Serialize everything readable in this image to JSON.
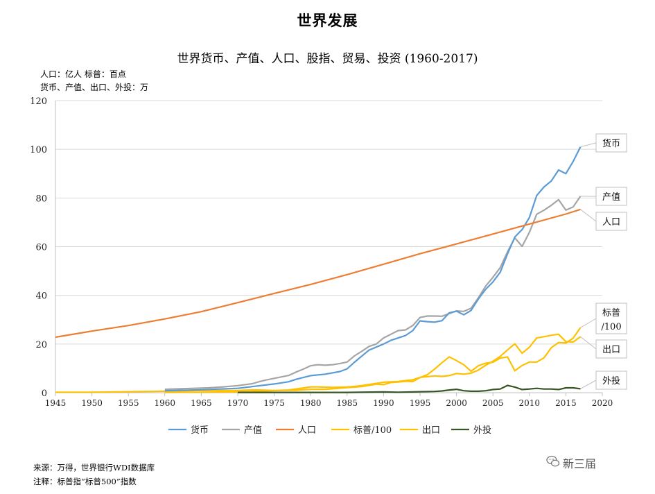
{
  "header": {
    "title": "世界发展",
    "unit_line_1": "人口：亿人   标普：百点",
    "unit_line_2": "货币、产值、出口、外投：万"
  },
  "footer": {
    "source": "来源：万得，世界银行WDI数据库",
    "note": "注释：标普指“标普500”指数",
    "brand": "新三届"
  },
  "chart_data": {
    "type": "line",
    "title": "世界货币、产值、人口、股指、贸易、投资 (1960-2017)",
    "xlim": [
      1945,
      2020
    ],
    "ylim": [
      0,
      120
    ],
    "x_ticks": [
      1945,
      1950,
      1955,
      1960,
      1965,
      1970,
      1975,
      1980,
      1985,
      1990,
      1995,
      2000,
      2005,
      2010,
      2015,
      2020
    ],
    "y_ticks": [
      0,
      20,
      40,
      60,
      80,
      100,
      120
    ],
    "legend_position": "bottom",
    "series": [
      {
        "name": "货币",
        "color": "#5b9bd5",
        "callout": "货币",
        "points": [
          [
            1960,
            0.8
          ],
          [
            1965,
            1.2
          ],
          [
            1970,
            1.8
          ],
          [
            1972,
            2.5
          ],
          [
            1975,
            3.6
          ],
          [
            1977,
            4.5
          ],
          [
            1978,
            5.5
          ],
          [
            1980,
            7.0
          ],
          [
            1982,
            7.6
          ],
          [
            1984,
            8.7
          ],
          [
            1985,
            9.8
          ],
          [
            1986,
            12.5
          ],
          [
            1987,
            15.0
          ],
          [
            1988,
            17.5
          ],
          [
            1990,
            20.0
          ],
          [
            1991,
            21.5
          ],
          [
            1993,
            23.5
          ],
          [
            1994,
            25.5
          ],
          [
            1995,
            29.5
          ],
          [
            1996,
            29.2
          ],
          [
            1997,
            29.0
          ],
          [
            1998,
            29.6
          ],
          [
            1999,
            32.8
          ],
          [
            2000,
            33.5
          ],
          [
            2001,
            32.0
          ],
          [
            2002,
            33.8
          ],
          [
            2003,
            38.5
          ],
          [
            2004,
            42.5
          ],
          [
            2005,
            45.5
          ],
          [
            2006,
            49.5
          ],
          [
            2007,
            57.0
          ],
          [
            2008,
            64.0
          ],
          [
            2009,
            67.0
          ],
          [
            2010,
            72.0
          ],
          [
            2011,
            81.0
          ],
          [
            2012,
            84.5
          ],
          [
            2013,
            87.0
          ],
          [
            2014,
            91.5
          ],
          [
            2015,
            90.0
          ],
          [
            2016,
            95.0
          ],
          [
            2017,
            101.0
          ]
        ]
      },
      {
        "name": "产值",
        "color": "#a5a5a5",
        "callout": "产值",
        "points": [
          [
            1960,
            1.4
          ],
          [
            1962,
            1.6
          ],
          [
            1964,
            1.8
          ],
          [
            1966,
            2.0
          ],
          [
            1968,
            2.4
          ],
          [
            1970,
            2.9
          ],
          [
            1972,
            3.7
          ],
          [
            1973,
            4.6
          ],
          [
            1974,
            5.3
          ],
          [
            1975,
            5.9
          ],
          [
            1977,
            7.1
          ],
          [
            1978,
            8.5
          ],
          [
            1979,
            9.7
          ],
          [
            1980,
            11.1
          ],
          [
            1981,
            11.5
          ],
          [
            1982,
            11.3
          ],
          [
            1983,
            11.5
          ],
          [
            1984,
            12.0
          ],
          [
            1985,
            12.6
          ],
          [
            1986,
            15.1
          ],
          [
            1987,
            17.0
          ],
          [
            1988,
            19.0
          ],
          [
            1989,
            20.0
          ],
          [
            1990,
            22.5
          ],
          [
            1991,
            24.0
          ],
          [
            1992,
            25.5
          ],
          [
            1993,
            25.8
          ],
          [
            1994,
            27.6
          ],
          [
            1995,
            30.9
          ],
          [
            1996,
            31.5
          ],
          [
            1997,
            31.5
          ],
          [
            1998,
            31.4
          ],
          [
            1999,
            32.5
          ],
          [
            2000,
            33.6
          ],
          [
            2001,
            33.4
          ],
          [
            2002,
            34.7
          ],
          [
            2003,
            39.0
          ],
          [
            2004,
            43.8
          ],
          [
            2005,
            47.4
          ],
          [
            2006,
            51.4
          ],
          [
            2007,
            57.9
          ],
          [
            2008,
            63.6
          ],
          [
            2009,
            60.1
          ],
          [
            2010,
            65.9
          ],
          [
            2011,
            73.3
          ],
          [
            2012,
            75.0
          ],
          [
            2013,
            77.0
          ],
          [
            2014,
            79.3
          ],
          [
            2015,
            75.0
          ],
          [
            2016,
            76.3
          ],
          [
            2017,
            80.7
          ]
        ]
      },
      {
        "name": "人口",
        "color": "#ed7d31",
        "callout": "人口",
        "points": [
          [
            1945,
            22.8
          ],
          [
            1950,
            25.3
          ],
          [
            1955,
            27.6
          ],
          [
            1960,
            30.3
          ],
          [
            1965,
            33.3
          ],
          [
            1970,
            37.0
          ],
          [
            1975,
            40.8
          ],
          [
            1980,
            44.5
          ],
          [
            1985,
            48.5
          ],
          [
            1990,
            52.8
          ],
          [
            1995,
            57.1
          ],
          [
            2000,
            61.1
          ],
          [
            2005,
            65.2
          ],
          [
            2010,
            69.3
          ],
          [
            2015,
            73.4
          ],
          [
            2017,
            75.3
          ]
        ]
      },
      {
        "name": "标普/100",
        "color": "#ffc000",
        "callout": "标普\n/100",
        "points": [
          [
            1945,
            0.2
          ],
          [
            1950,
            0.2
          ],
          [
            1955,
            0.4
          ],
          [
            1960,
            0.6
          ],
          [
            1965,
            0.9
          ],
          [
            1970,
            0.9
          ],
          [
            1972,
            1.2
          ],
          [
            1975,
            0.9
          ],
          [
            1978,
            1.0
          ],
          [
            1980,
            1.4
          ],
          [
            1982,
            1.4
          ],
          [
            1985,
            2.1
          ],
          [
            1987,
            2.5
          ],
          [
            1989,
            3.5
          ],
          [
            1990,
            3.3
          ],
          [
            1991,
            4.2
          ],
          [
            1992,
            4.4
          ],
          [
            1993,
            4.7
          ],
          [
            1994,
            4.6
          ],
          [
            1995,
            6.2
          ],
          [
            1996,
            7.4
          ],
          [
            1997,
            9.7
          ],
          [
            1998,
            12.3
          ],
          [
            1999,
            14.7
          ],
          [
            2000,
            13.2
          ],
          [
            2001,
            11.5
          ],
          [
            2002,
            8.8
          ],
          [
            2003,
            11.1
          ],
          [
            2004,
            12.1
          ],
          [
            2005,
            12.5
          ],
          [
            2006,
            14.2
          ],
          [
            2007,
            14.7
          ],
          [
            2008,
            9.0
          ],
          [
            2009,
            11.2
          ],
          [
            2010,
            12.6
          ],
          [
            2011,
            12.6
          ],
          [
            2012,
            14.3
          ],
          [
            2013,
            18.5
          ],
          [
            2014,
            20.6
          ],
          [
            2015,
            20.4
          ],
          [
            2016,
            22.4
          ],
          [
            2017,
            26.7
          ]
        ]
      },
      {
        "name": "出口",
        "color": "#ffc000",
        "callout": "出口",
        "points": [
          [
            1960,
            0.13
          ],
          [
            1965,
            0.19
          ],
          [
            1970,
            0.31
          ],
          [
            1973,
            0.58
          ],
          [
            1975,
            0.88
          ],
          [
            1977,
            1.1
          ],
          [
            1980,
            2.4
          ],
          [
            1981,
            2.4
          ],
          [
            1983,
            2.2
          ],
          [
            1985,
            2.3
          ],
          [
            1987,
            2.9
          ],
          [
            1990,
            4.3
          ],
          [
            1992,
            4.6
          ],
          [
            1994,
            5.3
          ],
          [
            1995,
            6.3
          ],
          [
            1997,
            6.9
          ],
          [
            1998,
            6.7
          ],
          [
            1999,
            7.0
          ],
          [
            2000,
            7.9
          ],
          [
            2001,
            7.6
          ],
          [
            2002,
            8.0
          ],
          [
            2003,
            9.3
          ],
          [
            2004,
            11.3
          ],
          [
            2005,
            12.9
          ],
          [
            2006,
            14.9
          ],
          [
            2007,
            17.6
          ],
          [
            2008,
            20.1
          ],
          [
            2009,
            16.2
          ],
          [
            2010,
            18.7
          ],
          [
            2011,
            22.5
          ],
          [
            2012,
            23.0
          ],
          [
            2013,
            23.6
          ],
          [
            2014,
            24.0
          ],
          [
            2015,
            21.0
          ],
          [
            2016,
            20.8
          ],
          [
            2017,
            23.0
          ]
        ]
      },
      {
        "name": "外投",
        "color": "#375623",
        "callout": "外投",
        "points": [
          [
            1970,
            0.1
          ],
          [
            1975,
            0.1
          ],
          [
            1980,
            0.1
          ],
          [
            1985,
            0.1
          ],
          [
            1990,
            0.3
          ],
          [
            1992,
            0.2
          ],
          [
            1994,
            0.3
          ],
          [
            1995,
            0.4
          ],
          [
            1997,
            0.5
          ],
          [
            1998,
            0.7
          ],
          [
            1999,
            1.1
          ],
          [
            2000,
            1.4
          ],
          [
            2001,
            0.8
          ],
          [
            2002,
            0.6
          ],
          [
            2003,
            0.6
          ],
          [
            2004,
            0.8
          ],
          [
            2005,
            1.3
          ],
          [
            2006,
            1.5
          ],
          [
            2007,
            3.0
          ],
          [
            2008,
            2.3
          ],
          [
            2009,
            1.3
          ],
          [
            2010,
            1.5
          ],
          [
            2011,
            1.8
          ],
          [
            2012,
            1.5
          ],
          [
            2013,
            1.5
          ],
          [
            2014,
            1.3
          ],
          [
            2015,
            2.0
          ],
          [
            2016,
            2.0
          ],
          [
            2017,
            1.6
          ]
        ]
      }
    ]
  }
}
